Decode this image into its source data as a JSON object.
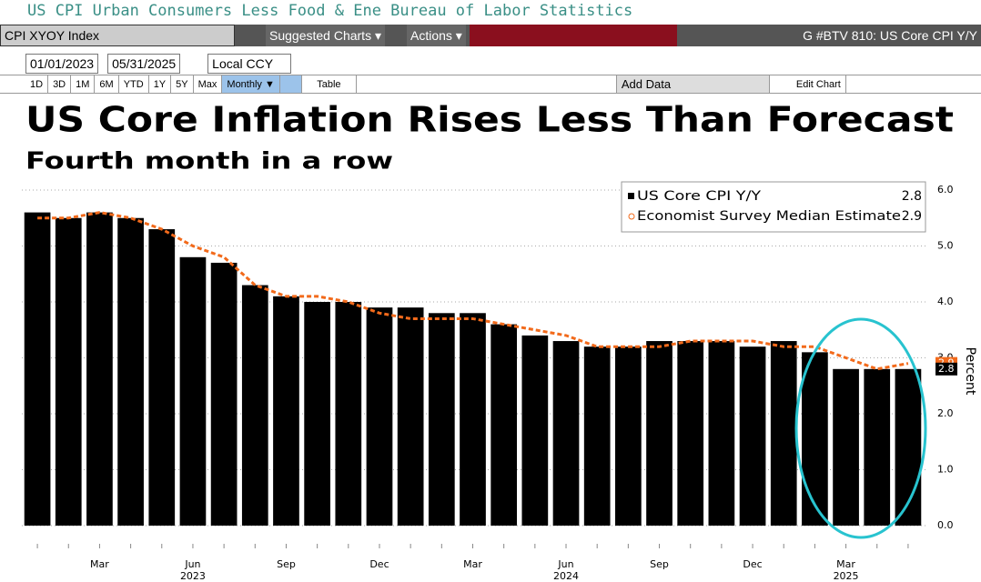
{
  "header": {
    "security_description": "US CPI Urban Consumers Less Food & Ene Bureau of Labor Statistics"
  },
  "toolbar": {
    "ticker": "CPI XYOY Index",
    "suggested_charts": "Suggested Charts ▾",
    "actions": "Actions ▾",
    "chart_name": "G #BTV 810: US Core CPI Y/Y",
    "start_date": "01/01/2023",
    "end_date": "05/31/2025",
    "currency": "Local CCY",
    "ranges": [
      "1D",
      "3D",
      "1M",
      "6M",
      "YTD",
      "1Y",
      "5Y",
      "Max"
    ],
    "frequency": "Monthly ▼",
    "table": "Table",
    "add_data": "Add Data",
    "edit_chart": "Edit Chart"
  },
  "chart_data": {
    "type": "bar",
    "title": "US Core Inflation Rises Less Than Forecast",
    "subtitle": "Fourth month in a row",
    "y_axis_label": "Percent",
    "categories": [
      null,
      null,
      "Mar",
      null,
      null,
      "Jun",
      null,
      null,
      "Sep",
      null,
      null,
      "Dec",
      null,
      null,
      "Mar",
      null,
      null,
      "Jun",
      null,
      null,
      "Sep",
      null,
      null,
      "Dec",
      null,
      null,
      "Mar",
      null,
      null
    ],
    "category_years": [
      null,
      null,
      null,
      null,
      null,
      "2023",
      null,
      null,
      null,
      null,
      null,
      null,
      null,
      null,
      null,
      null,
      null,
      "2024",
      null,
      null,
      null,
      null,
      null,
      null,
      null,
      null,
      "2025",
      null,
      null
    ],
    "series": [
      {
        "name": "US Core CPI Y/Y",
        "color": "#000000",
        "last_value_label": "2.8",
        "values": [
          5.6,
          5.5,
          5.6,
          5.5,
          5.3,
          4.8,
          4.7,
          4.3,
          4.1,
          4.0,
          4.0,
          3.9,
          3.9,
          3.8,
          3.8,
          3.6,
          3.4,
          3.3,
          3.2,
          3.2,
          3.3,
          3.3,
          3.3,
          3.2,
          3.3,
          3.1,
          2.8,
          2.8,
          2.8
        ]
      },
      {
        "name": "Economist Survey Median Estimate",
        "color": "#f26a1b",
        "type": "line",
        "last_value_label": "2.9",
        "values": [
          5.5,
          5.5,
          5.6,
          5.5,
          5.3,
          5.0,
          4.8,
          4.3,
          4.1,
          4.1,
          4.0,
          3.8,
          3.7,
          3.7,
          3.7,
          3.6,
          3.5,
          3.4,
          3.2,
          3.2,
          3.2,
          3.3,
          3.3,
          3.3,
          3.2,
          3.2,
          3.0,
          2.8,
          2.9
        ]
      }
    ],
    "ylim": [
      0,
      6.0
    ],
    "yticks": [
      {
        "value": 0,
        "label": "0.0"
      },
      {
        "value": 1,
        "label": "1.0"
      },
      {
        "value": 2,
        "label": "2.0"
      },
      {
        "value": 3,
        "label": "3.0"
      },
      {
        "value": 4,
        "label": "4.0"
      },
      {
        "value": 5,
        "label": "5.0"
      },
      {
        "value": 6,
        "label": "6.0"
      }
    ],
    "grid": true,
    "legend": "upper right"
  }
}
